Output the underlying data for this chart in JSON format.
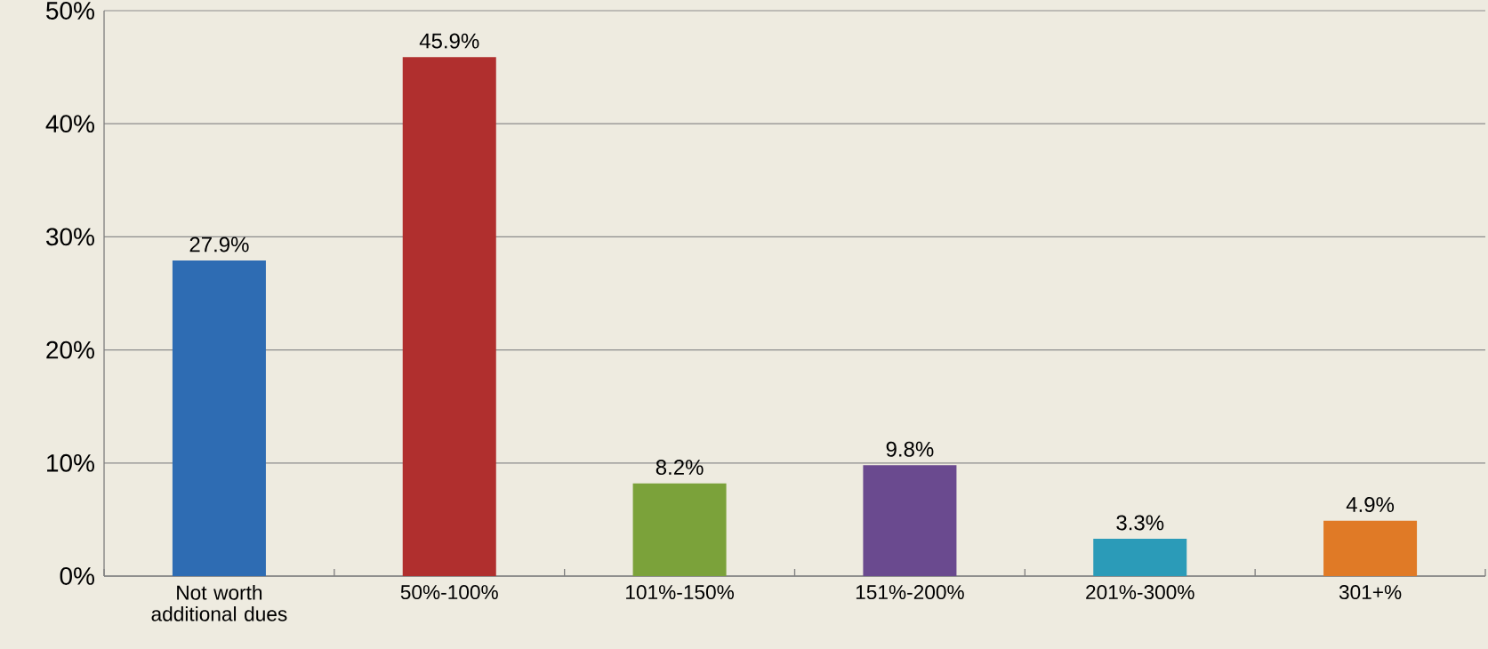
{
  "chart_data": {
    "type": "bar",
    "categories": [
      "Not worth additional dues",
      "50%-100%",
      "101%-150%",
      "151%-200%",
      "201%-300%",
      "301+%"
    ],
    "values": [
      27.9,
      45.9,
      8.2,
      9.8,
      3.3,
      4.9
    ],
    "colors": [
      "#2e6cb3",
      "#b02f2e",
      "#7ba23a",
      "#6a4a8f",
      "#2b9bb8",
      "#e07a26"
    ],
    "value_labels": [
      "27.9%",
      "45.9%",
      "8.2%",
      "9.8%",
      "3.3%",
      "4.9%"
    ],
    "ylim": [
      0,
      50
    ],
    "yticks": [
      {
        "value": 0,
        "label": "0%"
      },
      {
        "value": 10,
        "label": "10%"
      },
      {
        "value": 20,
        "label": "20%"
      },
      {
        "value": 30,
        "label": "30%"
      },
      {
        "value": 40,
        "label": "40%"
      },
      {
        "value": 50,
        "label": "50%"
      }
    ],
    "grid": "y"
  }
}
